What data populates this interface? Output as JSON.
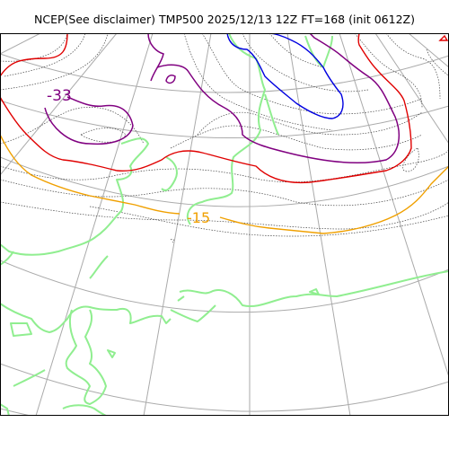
{
  "map": {
    "title": "NCEP(See disclaimer) TMP500 2025/12/13 12Z FT=168 (init 0612Z)",
    "contour_labels": {
      "cold": "-33",
      "warm": "-15"
    },
    "colors": {
      "coastline": "#90ee90",
      "isotherm_minus33": "#800080",
      "isotherm_minus15": "#f0a000",
      "isotherm_red": "#e00000",
      "isotherm_blue": "#0000e0",
      "minor_isotherms": "#444444",
      "graticule": "#aaaaaa"
    }
  }
}
